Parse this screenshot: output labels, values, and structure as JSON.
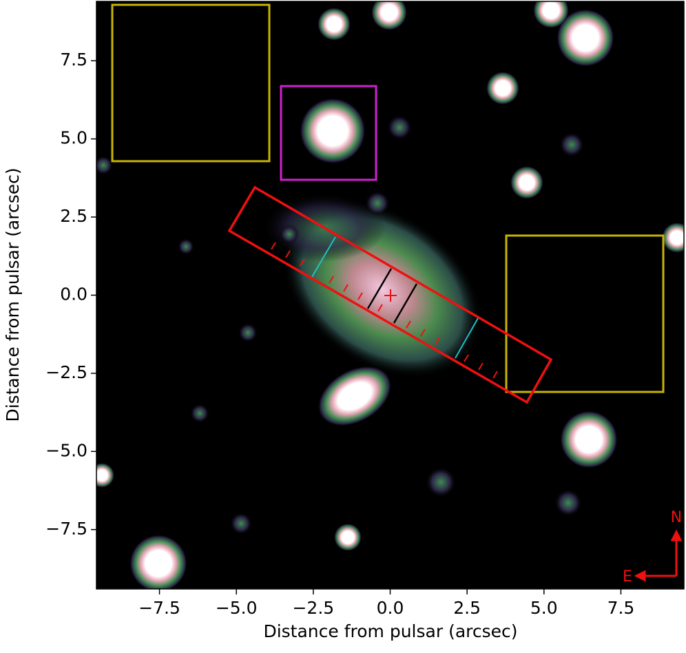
{
  "chart_data": {
    "type": "image",
    "xlabel": "Distance from pulsar (arcsec)",
    "ylabel": "Distance from pulsar  (arcsec)",
    "xlim": [
      -9.55,
      9.55
    ],
    "ylim": [
      -9.4,
      9.4
    ],
    "xticks": [
      {
        "value": -7.5,
        "label": "−7.5"
      },
      {
        "value": -5,
        "label": "−5.0"
      },
      {
        "value": -2.5,
        "label": "−2.5"
      },
      {
        "value": 0,
        "label": "0.0"
      },
      2.5,
      {
        "value": 5,
        "label": "5.0"
      },
      7.5
    ],
    "yticks": [
      {
        "value": -7.5,
        "label": "−7.5"
      },
      {
        "value": -5,
        "label": "−5.0"
      },
      {
        "value": -2.5,
        "label": "−2.5"
      },
      {
        "value": 0,
        "label": "0.0"
      },
      2.5,
      {
        "value": 5,
        "label": "5.0"
      },
      7.5
    ],
    "annotations": [
      "N",
      "E"
    ]
  }
}
